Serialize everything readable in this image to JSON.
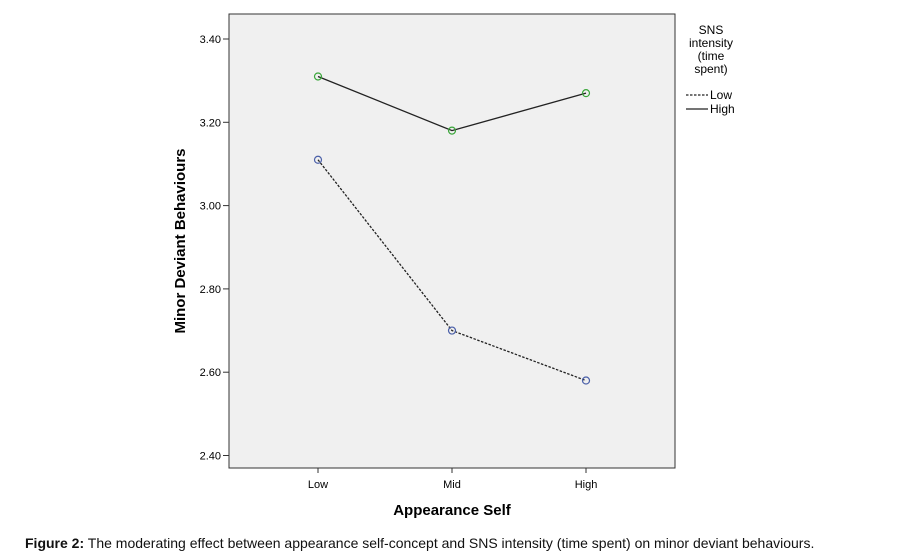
{
  "chart_data": {
    "type": "line",
    "xlabel": "Appearance Self",
    "ylabel": "Minor Deviant Behaviours",
    "categories": [
      "Low",
      "Mid",
      "High"
    ],
    "ylim": [
      2.37,
      3.46
    ],
    "yticks": [
      2.4,
      2.6,
      2.8,
      3.0,
      3.2,
      3.4
    ],
    "ytick_labels": [
      "2.40",
      "2.60",
      "2.80",
      "3.00",
      "3.20",
      "3.40"
    ],
    "legend_title_lines": [
      "SNS",
      "intensity",
      "(time",
      "spent)"
    ],
    "legend_position": "right",
    "grid": false,
    "plot_background": "#f0f0f0",
    "series": [
      {
        "name": "Low",
        "values": [
          3.11,
          2.7,
          2.58
        ],
        "line_style": "dashed",
        "marker_color": "#4a5fa8"
      },
      {
        "name": "High",
        "values": [
          3.31,
          3.18,
          3.27
        ],
        "line_style": "solid",
        "marker_color": "#3aa63a"
      }
    ]
  },
  "caption": {
    "label": "Figure 2:",
    "text": " The moderating effect between appearance self-concept and SNS intensity (time spent) on minor deviant behaviours."
  }
}
